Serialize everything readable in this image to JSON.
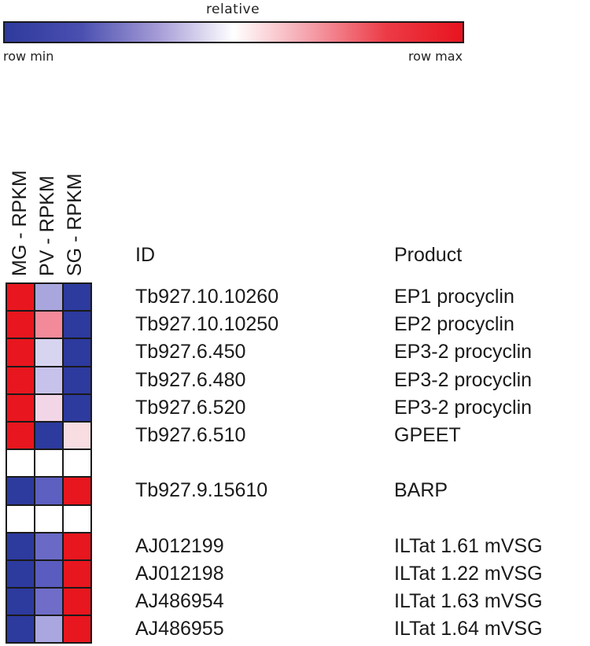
{
  "legend": {
    "title": "relative",
    "min_label": "row min",
    "max_label": "row max",
    "gradient": [
      "#2e3a9c",
      "#4a4fb0",
      "#a49bd6",
      "#ffffff",
      "#f5a0aa",
      "#ec3b46",
      "#e8141f"
    ]
  },
  "columns": [
    "MG - RPKM",
    "PV - RPKM",
    "SG - RPKM"
  ],
  "table_headers": {
    "id": "ID",
    "product": "Product"
  },
  "rows": [
    {
      "id": "Tb927.10.10260",
      "product": "EP1 procyclin",
      "colors": [
        "#e8161e",
        "#a8a6dd",
        "#2d3a9e"
      ]
    },
    {
      "id": "Tb927.10.10250",
      "product": "EP2 procyclin",
      "colors": [
        "#e8161e",
        "#f28a9a",
        "#2d3a9e"
      ]
    },
    {
      "id": "Tb927.6.450",
      "product": "EP3-2 procyclin",
      "colors": [
        "#e8161e",
        "#d7d4f0",
        "#2d3a9e"
      ]
    },
    {
      "id": "Tb927.6.480",
      "product": "EP3-2 procyclin",
      "colors": [
        "#e8161e",
        "#c7c2eb",
        "#2d3a9e"
      ]
    },
    {
      "id": "Tb927.6.520",
      "product": "EP3-2 procyclin",
      "colors": [
        "#e8161e",
        "#f2d5e6",
        "#2d3a9e"
      ]
    },
    {
      "id": "Tb927.6.510",
      "product": "GPEET",
      "colors": [
        "#e8161e",
        "#2d3a9e",
        "#f8dde2"
      ]
    },
    {
      "id": "",
      "product": "",
      "colors": [
        "#ffffff",
        "#ffffff",
        "#ffffff"
      ]
    },
    {
      "id": "Tb927.9.15610",
      "product": "BARP",
      "colors": [
        "#2d3a9e",
        "#5d5fc1",
        "#e8161e"
      ]
    },
    {
      "id": "",
      "product": "",
      "colors": [
        "#ffffff",
        "#ffffff",
        "#ffffff"
      ]
    },
    {
      "id": "AJ012199",
      "product": "ILTat 1.61 mVSG",
      "colors": [
        "#2d3a9e",
        "#6a69c6",
        "#e8161e"
      ]
    },
    {
      "id": "AJ012198",
      "product": "ILTat 1.22 mVSG",
      "colors": [
        "#2d3a9e",
        "#5a5cbf",
        "#e8161e"
      ]
    },
    {
      "id": "AJ486954",
      "product": "ILTat 1.63 mVSG",
      "colors": [
        "#2d3a9e",
        "#6f6dc8",
        "#e8161e"
      ]
    },
    {
      "id": "AJ486955",
      "product": "ILTat 1.64 mVSG",
      "colors": [
        "#2d3a9e",
        "#aaa6e0",
        "#e8161e"
      ]
    }
  ],
  "chart_data": {
    "type": "heatmap",
    "title": "relative",
    "color_scale": {
      "min_label": "row min",
      "max_label": "row max",
      "low": "#2e3a9c",
      "mid": "#ffffff",
      "high": "#e8141f"
    },
    "x": [
      "MG - RPKM",
      "PV - RPKM",
      "SG - RPKM"
    ],
    "y": [
      "Tb927.10.10260",
      "Tb927.10.10250",
      "Tb927.6.450",
      "Tb927.6.480",
      "Tb927.6.520",
      "Tb927.6.510",
      "",
      "Tb927.9.15610",
      "",
      "AJ012199",
      "AJ012198",
      "AJ486954",
      "AJ486955"
    ],
    "products": [
      "EP1 procyclin",
      "EP2 procyclin",
      "EP3-2 procyclin",
      "EP3-2 procyclin",
      "EP3-2 procyclin",
      "GPEET",
      "",
      "BARP",
      "",
      "ILTat 1.61 mVSG",
      "ILTat 1.22 mVSG",
      "ILTat 1.63 mVSG",
      "ILTat 1.64 mVSG"
    ],
    "values_relative": [
      [
        1.0,
        0.3,
        0.0
      ],
      [
        1.0,
        0.7,
        0.0
      ],
      [
        1.0,
        0.42,
        0.0
      ],
      [
        1.0,
        0.38,
        0.0
      ],
      [
        1.0,
        0.55,
        0.0
      ],
      [
        1.0,
        0.0,
        0.55
      ],
      [
        null,
        null,
        null
      ],
      [
        0.0,
        0.15,
        1.0
      ],
      [
        null,
        null,
        null
      ],
      [
        0.0,
        0.18,
        1.0
      ],
      [
        0.0,
        0.14,
        1.0
      ],
      [
        0.0,
        0.2,
        1.0
      ],
      [
        0.0,
        0.32,
        1.0
      ]
    ],
    "value_range": [
      0,
      1
    ],
    "grid": true,
    "legend_position": "top"
  }
}
